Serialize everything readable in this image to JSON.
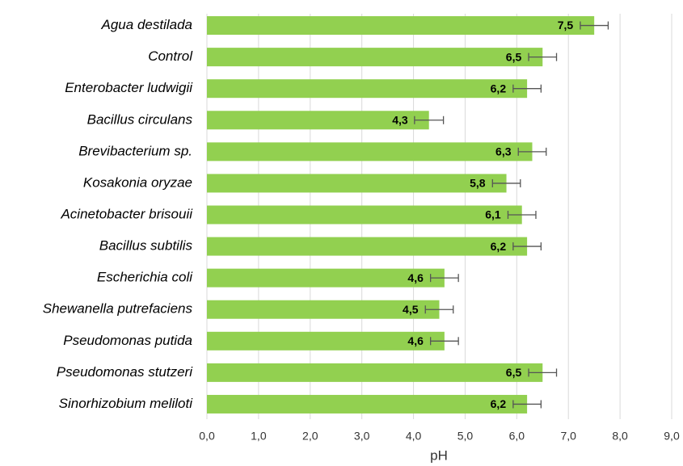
{
  "chart_data": {
    "type": "bar",
    "orientation": "horizontal",
    "categories": [
      "Agua destilada",
      "Control ",
      "Enterobacter ludwigii",
      "Bacillus circulans",
      "Brevibacterium sp.",
      "Kosakonia oryzae",
      "Acinetobacter brisouii",
      "Bacillus subtilis",
      "Escherichia coli",
      "Shewanella putrefaciens",
      "Pseudomonas putida",
      "Pseudomonas stutzeri",
      "Sinorhizobium meliloti"
    ],
    "values": [
      7.5,
      6.5,
      6.2,
      4.3,
      6.3,
      5.8,
      6.1,
      6.2,
      4.6,
      4.5,
      4.6,
      6.5,
      6.2
    ],
    "value_labels": [
      "7,5",
      "6,5",
      "6,2",
      "4,3",
      "6,3",
      "5,8",
      "6,1",
      "6,2",
      "4,6",
      "4,5",
      "4,6",
      "6,5",
      "6,2"
    ],
    "errors": [
      0.27,
      0.27,
      0.27,
      0.28,
      0.27,
      0.27,
      0.27,
      0.27,
      0.27,
      0.27,
      0.27,
      0.27,
      0.27
    ],
    "color": "#92d050",
    "xlabel": "pH",
    "xlim": [
      0,
      9
    ],
    "xticks": [
      {
        "value": 0,
        "label": "0,0"
      },
      {
        "value": 1,
        "label": "1,0"
      },
      {
        "value": 2,
        "label": "2,0"
      },
      {
        "value": 3,
        "label": "3,0"
      },
      {
        "value": 4,
        "label": "4,0"
      },
      {
        "value": 5,
        "label": "5,0"
      },
      {
        "value": 6,
        "label": "6,0"
      },
      {
        "value": 7,
        "label": "7,0"
      },
      {
        "value": 8,
        "label": "8,0"
      },
      {
        "value": 9,
        "label": "9,0"
      }
    ],
    "grid": true
  }
}
